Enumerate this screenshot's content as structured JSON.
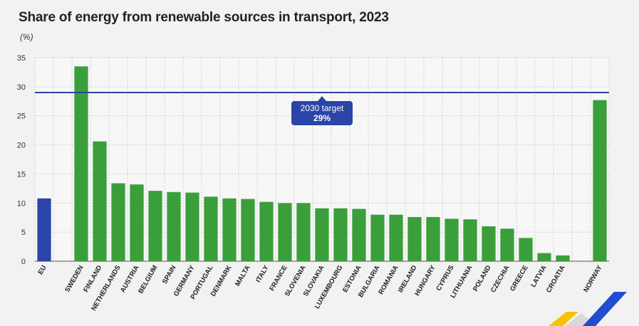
{
  "title": "Share of energy from renewable sources in transport, 2023",
  "unit_label": "(%)",
  "target": {
    "line1": "2030 target",
    "line2": "29%",
    "value": 29
  },
  "colors": {
    "eu_bar": "#2b44a8",
    "country_bar": "#3a9f3a",
    "target_line": "#2b44a8",
    "target_box": "#2b44a8",
    "grid": "#cfcfcf",
    "logo_blue": "#1f4fd0",
    "logo_yellow": "#f5c400",
    "logo_gray": "#d9d9d9"
  },
  "chart_data": {
    "type": "bar",
    "title": "Share of energy from renewable sources in transport, 2023",
    "ylabel": "(%)",
    "xlabel": "",
    "ylim": [
      0,
      35
    ],
    "yticks": [
      0,
      5,
      10,
      15,
      20,
      25,
      30,
      35
    ],
    "grid": true,
    "categories": [
      "EU",
      "",
      "SWEDEN",
      "FINLAND",
      "NETHERLANDS",
      "AUSTRIA",
      "BELGIUM",
      "SPAIN",
      "GERMANY",
      "PORTUGAL",
      "DENMARK",
      "MALTA",
      "ITALY",
      "FRANCE",
      "SLOVENIA",
      "SLOVAKIA",
      "LUXEMBOURG",
      "ESTONIA",
      "BULGARIA",
      "ROMANIA",
      "IRELAND",
      "HUNGARY",
      "CYPRUS",
      "LITHUANIA",
      "POLAND",
      "CZECHIA",
      "GREECE",
      "LATVIA",
      "CROATIA",
      "",
      "NORWAY"
    ],
    "values": [
      10.8,
      null,
      33.5,
      20.6,
      13.4,
      13.2,
      12.1,
      11.9,
      11.8,
      11.1,
      10.8,
      10.7,
      10.2,
      10.0,
      10.0,
      9.1,
      9.1,
      9.0,
      8.0,
      8.0,
      7.6,
      7.6,
      7.3,
      7.2,
      6.0,
      5.6,
      4.0,
      1.4,
      1.0,
      null,
      27.7
    ],
    "highlight": [
      "EU"
    ],
    "reference_line": {
      "label": "2030 target",
      "value": 29
    }
  }
}
